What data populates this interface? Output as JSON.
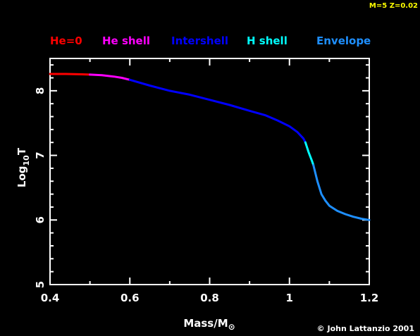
{
  "model_label": "M=5 Z=0.02",
  "credit": "© John Lattanzio 2001",
  "colors": {
    "background": "#000000",
    "axes": "#ffffff",
    "model_label": "#ffff00"
  },
  "legend": [
    {
      "label": "He=0",
      "color": "#ff0000"
    },
    {
      "label": "He shell",
      "color": "#ff00ff"
    },
    {
      "label": "Intershell",
      "color": "#0000ff"
    },
    {
      "label": "H shell",
      "color": "#00ffff"
    },
    {
      "label": "Envelope",
      "color": "#1e8fff"
    }
  ],
  "chart_data": {
    "type": "line",
    "xlabel": "Mass/M",
    "xlabel_symbol": "⊙",
    "ylabel": "Log",
    "ylabel_sub": "10",
    "ylabel_tail": "T",
    "xlim": [
      0.4,
      1.2
    ],
    "ylim": [
      5,
      8.5
    ],
    "xticks": [
      0.4,
      0.6,
      0.8,
      1,
      1.2
    ],
    "xtick_labels": [
      "0.4",
      "0.6",
      "0.8",
      "1",
      "1.2"
    ],
    "yticks": [
      5,
      6,
      7,
      8
    ],
    "ytick_labels": [
      "5",
      "6",
      "7",
      "8"
    ],
    "grid": false,
    "legend_placement": "top, horizontal",
    "series": [
      {
        "name": "He=0",
        "color": "#ff0000",
        "x": [
          0.4,
          0.44,
          0.48,
          0.5
        ],
        "y": [
          8.26,
          8.26,
          8.255,
          8.25
        ]
      },
      {
        "name": "He shell",
        "color": "#ff00ff",
        "x": [
          0.5,
          0.53,
          0.56,
          0.58,
          0.6
        ],
        "y": [
          8.25,
          8.24,
          8.22,
          8.2,
          8.17
        ]
      },
      {
        "name": "Intershell",
        "color": "#0000ff",
        "x": [
          0.6,
          0.65,
          0.7,
          0.75,
          0.8,
          0.85,
          0.9,
          0.94,
          0.97,
          1.0,
          1.02,
          1.035,
          1.04
        ],
        "y": [
          8.17,
          8.08,
          8.0,
          7.94,
          7.86,
          7.78,
          7.69,
          7.62,
          7.54,
          7.45,
          7.36,
          7.26,
          7.2
        ]
      },
      {
        "name": "H shell",
        "color": "#00ffff",
        "x": [
          1.04,
          1.048,
          1.056,
          1.06
        ],
        "y": [
          7.2,
          7.05,
          6.92,
          6.85
        ]
      },
      {
        "name": "Envelope",
        "color": "#1e8fff",
        "x": [
          1.06,
          1.07,
          1.08,
          1.09,
          1.1,
          1.12,
          1.14,
          1.16,
          1.18,
          1.2
        ],
        "y": [
          6.85,
          6.6,
          6.4,
          6.3,
          6.22,
          6.14,
          6.09,
          6.05,
          6.02,
          6.0
        ]
      }
    ]
  }
}
